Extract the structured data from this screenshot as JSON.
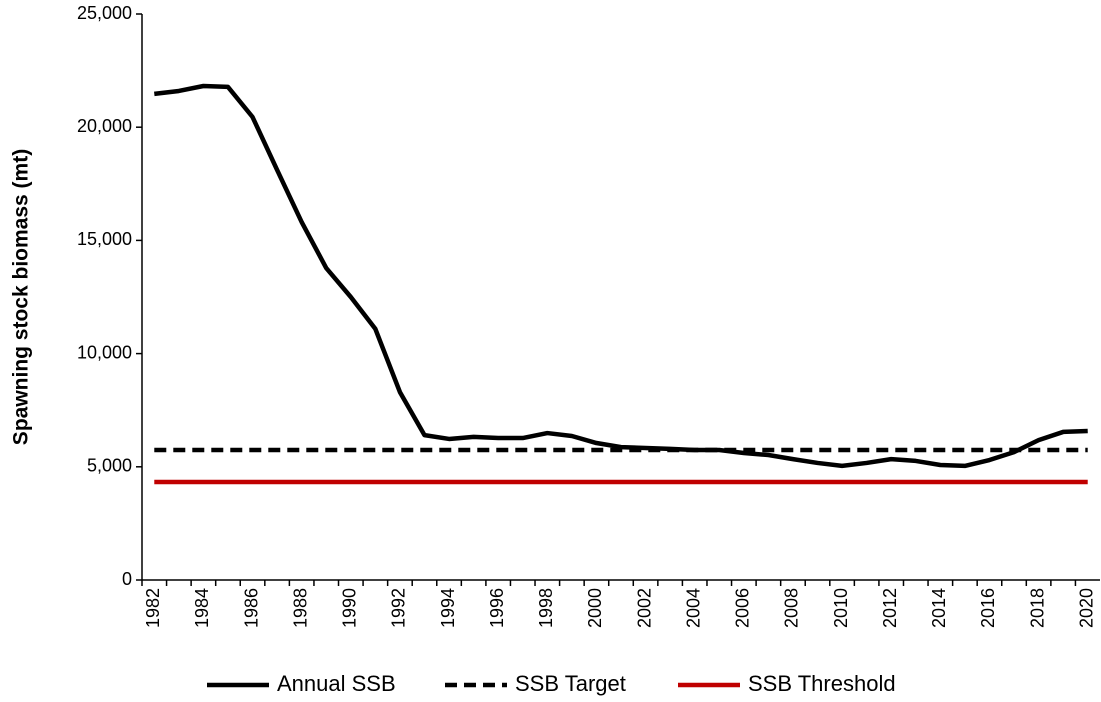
{
  "chart_data": {
    "type": "line",
    "y_label": "Spawning stock biomass (mt)",
    "categories": [
      "1982",
      null,
      "1984",
      null,
      "1986",
      null,
      "1988",
      null,
      "1990",
      null,
      "1992",
      null,
      "1994",
      null,
      "1996",
      null,
      "1998",
      null,
      "2000",
      null,
      "2002",
      null,
      "2004",
      null,
      "2006",
      null,
      "2008",
      null,
      "2010",
      null,
      "2012",
      null,
      "2014",
      null,
      "2016",
      null,
      "2018",
      null,
      "2020"
    ],
    "series": [
      {
        "name": "Annual SSB",
        "color": "#000000",
        "dash": "solid",
        "values": [
          21470,
          21600,
          21820,
          21780,
          20450,
          18110,
          15810,
          13780,
          12500,
          11090,
          8300,
          6400,
          6230,
          6320,
          6270,
          6270,
          6490,
          6360,
          6050,
          5870,
          5830,
          5790,
          5740,
          5740,
          5610,
          5520,
          5340,
          5170,
          5040,
          5170,
          5340,
          5260,
          5080,
          5040,
          5300,
          5650,
          6180,
          6540,
          6580
        ]
      },
      {
        "name": "SSB Target",
        "color": "#000000",
        "dash": "dashed",
        "values": [
          5740,
          5740,
          5740,
          5740,
          5740,
          5740,
          5740,
          5740,
          5740,
          5740,
          5740,
          5740,
          5740,
          5740,
          5740,
          5740,
          5740,
          5740,
          5740,
          5740,
          5740,
          5740,
          5740,
          5740,
          5740,
          5740,
          5740,
          5740,
          5740,
          5740,
          5740,
          5740,
          5740,
          5740,
          5740,
          5740,
          5740,
          5740,
          5740
        ]
      },
      {
        "name": "SSB Threshold",
        "color": "#c00000",
        "dash": "solid",
        "values": [
          4330,
          4330,
          4330,
          4330,
          4330,
          4330,
          4330,
          4330,
          4330,
          4330,
          4330,
          4330,
          4330,
          4330,
          4330,
          4330,
          4330,
          4330,
          4330,
          4330,
          4330,
          4330,
          4330,
          4330,
          4330,
          4330,
          4330,
          4330,
          4330,
          4330,
          4330,
          4330,
          4330,
          4330,
          4330,
          4330,
          4330,
          4330,
          4330
        ]
      }
    ],
    "ylim": [
      0,
      25000
    ],
    "yticks": [
      0,
      {
        "value": 5000,
        "label": "5,000"
      },
      {
        "value": 10000,
        "label": "10,000"
      },
      {
        "value": 15000,
        "label": "15,000"
      },
      {
        "value": 20000,
        "label": "20,000"
      },
      {
        "value": 25000,
        "label": "25,000"
      }
    ],
    "grid": false,
    "legend": "bottom"
  }
}
